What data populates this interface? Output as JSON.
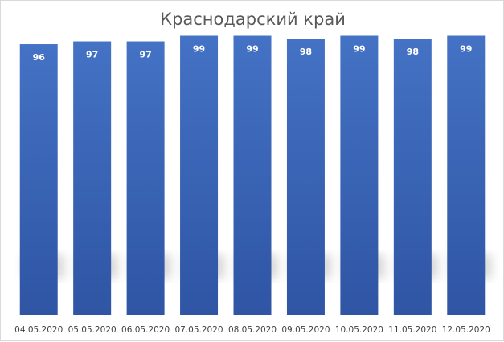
{
  "chart_data": {
    "type": "bar",
    "title": "Краснодарский край",
    "categories": [
      "04.05.2020",
      "05.05.2020",
      "06.05.2020",
      "07.05.2020",
      "08.05.2020",
      "09.05.2020",
      "10.05.2020",
      "11.05.2020",
      "12.05.2020"
    ],
    "values": [
      96,
      97,
      97,
      99,
      99,
      98,
      99,
      98,
      99
    ],
    "data_labels": [
      "96",
      "97",
      "97",
      "99",
      "99",
      "98",
      "99",
      "98",
      "99"
    ],
    "xlabel": "",
    "ylabel": "",
    "ylim": [
      0,
      100
    ],
    "grid": false,
    "legend": "none",
    "colors": {
      "bar_top": "#4472c4",
      "bar_bottom": "#2f55a4",
      "label": "#ffffff",
      "tick": "#404040",
      "title": "#595959"
    }
  }
}
